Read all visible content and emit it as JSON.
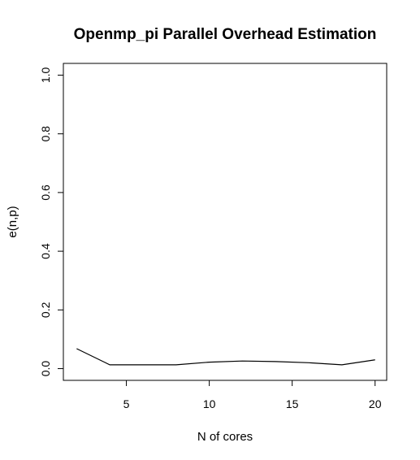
{
  "chart_data": {
    "type": "line",
    "title": "Openmp_pi Parallel Overhead Estimation",
    "xlabel": "N of cores",
    "ylabel": "e(n,p)",
    "x": [
      2,
      4,
      6,
      8,
      10,
      12,
      14,
      16,
      18,
      20
    ],
    "series": [
      {
        "values": [
          0.068,
          0.013,
          0.013,
          0.013,
          0.022,
          0.026,
          0.024,
          0.02,
          0.013,
          0.03
        ]
      }
    ],
    "xlim": [
      1.2,
      20.7
    ],
    "ylim": [
      -0.04,
      1.04
    ],
    "xticks": [
      5,
      10,
      15,
      20
    ],
    "yticks": [
      0.0,
      0.2,
      0.4,
      0.6,
      0.8,
      1.0
    ],
    "xtick_labels": [
      "5",
      "10",
      "15",
      "20"
    ],
    "ytick_labels": [
      "0.0",
      "0.2",
      "0.4",
      "0.6",
      "0.8",
      "1.0"
    ],
    "grid": false,
    "line_color": "#000000"
  }
}
